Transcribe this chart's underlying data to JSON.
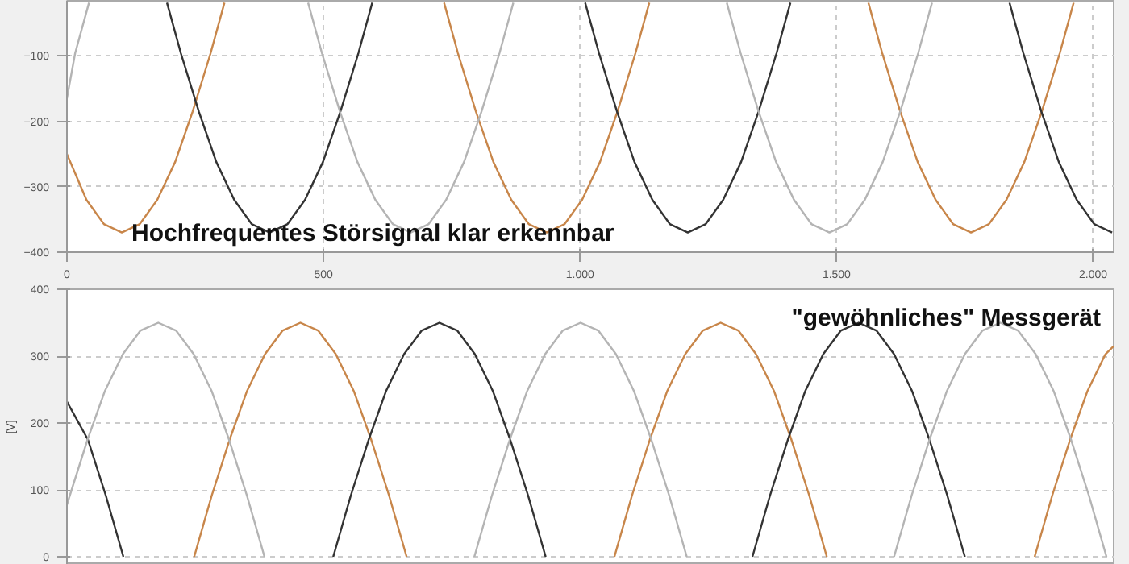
{
  "chart_data": [
    {
      "type": "line",
      "xlim": [
        0,
        2040
      ],
      "ylim": [
        -400,
        -16
      ],
      "xticks": [
        0,
        500,
        {
          "value": 1000,
          "label": "1.000"
        },
        {
          "value": 1500,
          "label": "1.500"
        },
        {
          "value": 2000,
          "label": "2.000"
        }
      ],
      "yticks": [
        -100,
        -200,
        -300,
        -400
      ],
      "grid": true,
      "annotations": [
        "Hochfrequentes Störsignal klar erkennbar"
      ],
      "series": [
        {
          "color": "#c8864a",
          "x": [
            0,
            38,
            72,
            107,
            142,
            176,
            211,
            245,
            280,
            307,
            null,
            735,
            762,
            797,
            831,
            866,
            900,
            935,
            970,
            1004,
            1039,
            1073,
            1108,
            1135,
            null,
            1562,
            1589,
            1624,
            1658,
            1693,
            1727,
            1762,
            1797,
            1831,
            1866,
            1900,
            1935,
            1962
          ],
          "values": [
            -250,
            -320,
            -357,
            -370,
            -357,
            -320,
            -262,
            -185,
            -96,
            -19,
            null,
            -19,
            -96,
            -185,
            -262,
            -320,
            -357,
            -370,
            -357,
            -320,
            -262,
            -185,
            -96,
            -19,
            null,
            -19,
            -96,
            -185,
            -262,
            -320,
            -357,
            -370,
            -357,
            -320,
            -262,
            -185,
            -96,
            -19
          ]
        },
        {
          "color": "#333333",
          "x": [
            195,
            222,
            257,
            291,
            326,
            360,
            395,
            430,
            464,
            499,
            533,
            568,
            595,
            null,
            1010,
            1037,
            1072,
            1106,
            1141,
            1175,
            1210,
            1245,
            1279,
            1314,
            1348,
            1383,
            1410,
            null,
            1837,
            1864,
            1899,
            1933,
            1968,
            2002,
            2037
          ],
          "values": [
            -19,
            -96,
            -185,
            -262,
            -320,
            -357,
            -370,
            -357,
            -320,
            -262,
            -185,
            -96,
            -19,
            null,
            -19,
            -96,
            -185,
            -262,
            -320,
            -357,
            -370,
            -357,
            -320,
            -262,
            -185,
            -96,
            -19,
            null,
            -19,
            -96,
            -185,
            -262,
            -320,
            -357,
            -370
          ]
        },
        {
          "color": "#b4b4b4",
          "x": [
            0,
            16,
            43,
            null,
            470,
            497,
            532,
            566,
            601,
            635,
            670,
            705,
            739,
            774,
            808,
            843,
            870,
            null,
            1286,
            1313,
            1348,
            1382,
            1417,
            1451,
            1486,
            1521,
            1555,
            1590,
            1624,
            1659,
            1686
          ],
          "values": [
            -165,
            -96,
            -19,
            null,
            -19,
            -96,
            -185,
            -262,
            -320,
            -357,
            -370,
            -357,
            -320,
            -262,
            -185,
            -96,
            -19,
            null,
            -19,
            -96,
            -185,
            -262,
            -320,
            -357,
            -370,
            -357,
            -320,
            -262,
            -185,
            -96,
            -19
          ]
        }
      ]
    },
    {
      "type": "line",
      "xlim": [
        0,
        2040
      ],
      "ylim": [
        -12,
        400
      ],
      "yticks": [
        0,
        100,
        200,
        300,
        400
      ],
      "tick_labels": "y",
      "ylabel": "[V]",
      "grid": true,
      "annotations": [
        "\"gewöhnliches\" Messgerät"
      ],
      "series": [
        {
          "color": "#c8864a",
          "x": [
            248,
            282,
            317,
            351,
            386,
            420,
            455,
            490,
            524,
            559,
            593,
            628,
            662,
            null,
            1067,
            1101,
            1136,
            1170,
            1205,
            1239,
            1274,
            1309,
            1343,
            1378,
            1412,
            1447,
            1481,
            null,
            1886,
            1920,
            1955,
            1989,
            2024,
            2040
          ],
          "values": [
            0,
            91,
            175,
            248,
            303,
            338,
            350,
            338,
            303,
            248,
            175,
            91,
            0,
            null,
            0,
            91,
            175,
            248,
            303,
            338,
            350,
            338,
            303,
            248,
            175,
            91,
            0,
            null,
            0,
            91,
            175,
            248,
            303,
            315
          ]
        },
        {
          "color": "#333333",
          "x": [
            0,
            41,
            76,
            110,
            null,
            519,
            553,
            588,
            622,
            657,
            691,
            726,
            761,
            795,
            830,
            864,
            899,
            933,
            null,
            1336,
            1370,
            1405,
            1439,
            1474,
            1508,
            1543,
            1578,
            1612,
            1647,
            1681,
            1716,
            1750
          ],
          "values": [
            232,
            175,
            91,
            0,
            null,
            0,
            91,
            175,
            248,
            303,
            338,
            350,
            338,
            303,
            248,
            175,
            91,
            0,
            null,
            0,
            91,
            175,
            248,
            303,
            338,
            350,
            338,
            303,
            248,
            175,
            91,
            0
          ]
        },
        {
          "color": "#b4b4b4",
          "x": [
            0,
            40,
            74,
            109,
            143,
            178,
            213,
            247,
            282,
            316,
            351,
            385,
            null,
            794,
            828,
            863,
            897,
            932,
            966,
            1001,
            1036,
            1070,
            1105,
            1139,
            1174,
            1208,
            null,
            1612,
            1646,
            1681,
            1715,
            1750,
            1784,
            1819,
            1854,
            1888,
            1923,
            1957,
            1992,
            2026
          ],
          "values": [
            78,
            175,
            248,
            303,
            338,
            350,
            338,
            303,
            248,
            175,
            91,
            0,
            null,
            0,
            91,
            175,
            248,
            303,
            338,
            350,
            338,
            303,
            248,
            175,
            91,
            0,
            null,
            0,
            91,
            175,
            248,
            303,
            338,
            350,
            338,
            303,
            248,
            175,
            91,
            0
          ]
        }
      ]
    }
  ]
}
